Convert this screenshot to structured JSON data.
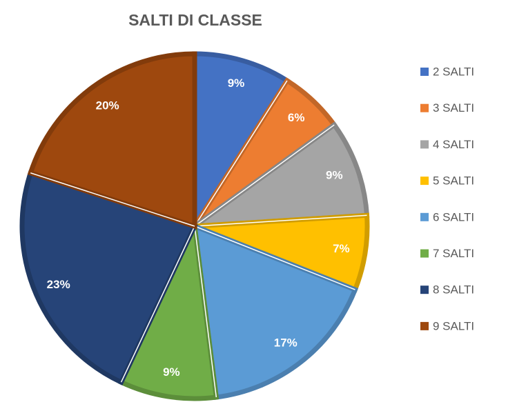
{
  "chart_data": {
    "type": "pie",
    "title": "SALTI DI CLASSE",
    "categories": [
      "2 SALTI",
      "3 SALTI",
      "4 SALTI",
      "5 SALTI",
      "6 SALTI",
      "7 SALTI",
      "8 SALTI",
      "9 SALTI"
    ],
    "values": [
      9,
      6,
      9,
      7,
      17,
      9,
      23,
      20
    ],
    "value_labels": [
      "9%",
      "6%",
      "9%",
      "7%",
      "17%",
      "9%",
      "23%",
      "20%"
    ],
    "colors": [
      "#4472c4",
      "#ed7d31",
      "#a5a5a5",
      "#ffc000",
      "#5b9bd5",
      "#70ad47",
      "#264478",
      "#9e480e"
    ],
    "legend": "right"
  }
}
